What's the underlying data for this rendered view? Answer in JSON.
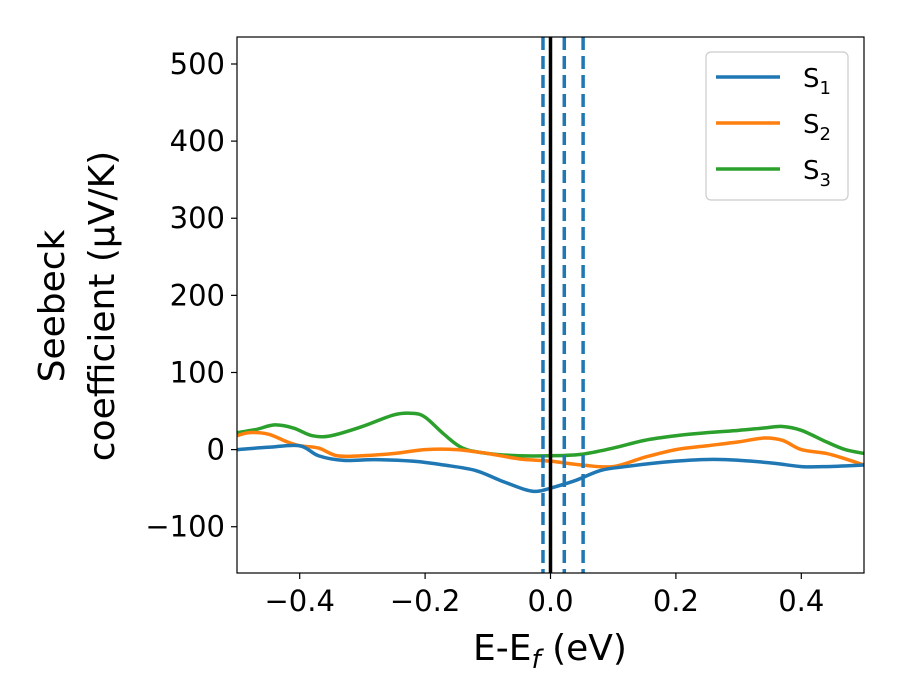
{
  "chart_data": {
    "type": "line",
    "xlabel_main": "E-E",
    "xlabel_sub": "f",
    "xlabel_unit": " (eV)",
    "ylabel_line1": "Seebeck",
    "ylabel_line2": "coefficient  (μV/K)",
    "xlim": [
      -0.5,
      0.5
    ],
    "ylim": [
      -160,
      535
    ],
    "xticks": [
      -0.4,
      -0.2,
      0.0,
      0.2,
      0.4
    ],
    "xtick_labels": [
      "−0.4",
      "−0.2",
      "0.0",
      "0.2",
      "0.4"
    ],
    "yticks": [
      -100,
      0,
      100,
      200,
      300,
      400,
      500
    ],
    "ytick_labels": [
      "−100",
      "0",
      "100",
      "200",
      "300",
      "400",
      "500"
    ],
    "grid": false,
    "legend_position": "top-right",
    "vertical_lines": [
      {
        "x": 0.0,
        "style": "solid",
        "color": "#000000"
      },
      {
        "x": -0.012,
        "style": "dashed",
        "color": "#1f77b4"
      },
      {
        "x": 0.022,
        "style": "dashed",
        "color": "#1f77b4"
      },
      {
        "x": 0.052,
        "style": "dashed",
        "color": "#1f77b4"
      }
    ],
    "series": [
      {
        "name_main": "S",
        "name_sub": "1",
        "color": "#1f77b4",
        "x": [
          -0.5,
          -0.45,
          -0.4,
          -0.37,
          -0.33,
          -0.28,
          -0.22,
          -0.17,
          -0.12,
          -0.08,
          -0.04,
          -0.02,
          0.0,
          0.04,
          0.08,
          0.12,
          0.16,
          0.2,
          0.24,
          0.28,
          0.32,
          0.36,
          0.4,
          0.44,
          0.5
        ],
        "y": [
          0,
          3,
          5,
          -8,
          -14,
          -13,
          -15,
          -20,
          -27,
          -40,
          -52,
          -54,
          -50,
          -40,
          -27,
          -22,
          -18,
          -15,
          -13,
          -13,
          -15,
          -18,
          -22,
          -22,
          -20
        ]
      },
      {
        "name_main": "S",
        "name_sub": "2",
        "color": "#ff7f0e",
        "x": [
          -0.5,
          -0.48,
          -0.45,
          -0.42,
          -0.4,
          -0.37,
          -0.34,
          -0.3,
          -0.25,
          -0.2,
          -0.15,
          -0.1,
          -0.05,
          0.0,
          0.05,
          0.1,
          0.15,
          0.2,
          0.25,
          0.3,
          0.34,
          0.37,
          0.4,
          0.44,
          0.47,
          0.5
        ],
        "y": [
          18,
          22,
          20,
          10,
          5,
          2,
          -8,
          -8,
          -5,
          0,
          0,
          -5,
          -12,
          -15,
          -20,
          -22,
          -10,
          0,
          5,
          10,
          15,
          12,
          0,
          -5,
          -12,
          -20
        ]
      },
      {
        "name_main": "S",
        "name_sub": "3",
        "color": "#2ca02c",
        "x": [
          -0.5,
          -0.47,
          -0.44,
          -0.41,
          -0.38,
          -0.35,
          -0.3,
          -0.25,
          -0.22,
          -0.2,
          -0.17,
          -0.14,
          -0.1,
          -0.05,
          0.0,
          0.05,
          0.1,
          0.15,
          0.2,
          0.25,
          0.3,
          0.34,
          0.37,
          0.4,
          0.44,
          0.47,
          0.5
        ],
        "y": [
          22,
          26,
          32,
          28,
          18,
          18,
          30,
          45,
          47,
          42,
          20,
          2,
          -5,
          -8,
          -8,
          -6,
          2,
          12,
          18,
          22,
          25,
          28,
          30,
          25,
          10,
          0,
          -5
        ]
      }
    ]
  }
}
